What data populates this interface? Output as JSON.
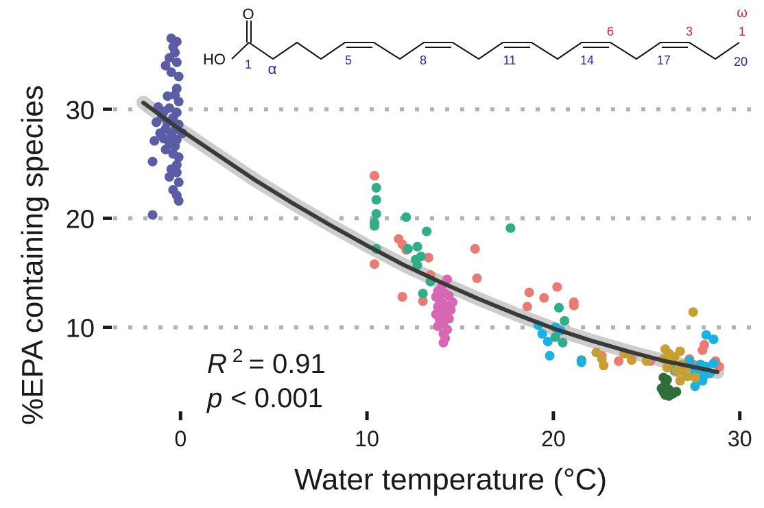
{
  "chart_data": {
    "type": "scatter",
    "title": "",
    "xlabel": "Water temperature (°C)",
    "ylabel": "%EPA containing species",
    "xlim": [
      -3.8,
      30.6
    ],
    "ylim": [
      2.3,
      37.5
    ],
    "xticks": [
      "0",
      "10",
      "20",
      "30"
    ],
    "xtick_values": [
      0,
      10,
      20,
      30
    ],
    "yticks": [
      "10",
      "20",
      "30"
    ],
    "ytick_values": [
      10,
      20,
      30
    ],
    "grid": "dotted horizontal lines at y ticks",
    "stats": {
      "r2_label": "R",
      "r2_exp": "2",
      "r2_value": "= 0.91",
      "p_label": "p",
      "p_value": "< 0.001"
    },
    "fit": {
      "color": "#3a3a3a",
      "band_color": "#c8c8c8",
      "points": [
        [
          -2.0,
          30.6
        ],
        [
          0,
          28.1
        ],
        [
          2,
          25.8
        ],
        [
          4,
          23.5
        ],
        [
          6,
          21.4
        ],
        [
          8,
          19.4
        ],
        [
          10,
          17.5
        ],
        [
          12,
          15.7
        ],
        [
          14,
          14.1
        ],
        [
          16,
          12.6
        ],
        [
          18,
          11.2
        ],
        [
          20,
          9.9
        ],
        [
          22,
          8.8
        ],
        [
          24,
          7.8
        ],
        [
          26,
          6.9
        ],
        [
          28,
          6.2
        ],
        [
          28.8,
          5.9
        ]
      ]
    },
    "series": [
      {
        "color": "#5b5ba6",
        "points": [
          [
            -0.5,
            36.5
          ],
          [
            -0.2,
            36.2
          ],
          [
            -0.4,
            35.7
          ],
          [
            -0.3,
            35.2
          ],
          [
            -0.6,
            34.7
          ],
          [
            -0.2,
            34.3
          ],
          [
            -0.8,
            34.0
          ],
          [
            -0.5,
            33.4
          ],
          [
            -0.1,
            33.0
          ],
          [
            -0.2,
            31.9
          ],
          [
            -0.7,
            31.2
          ],
          [
            -0.3,
            31.3
          ],
          [
            -0.1,
            30.7
          ],
          [
            -1.2,
            30.2
          ],
          [
            -0.9,
            29.8
          ],
          [
            -0.6,
            30.1
          ],
          [
            -0.2,
            29.7
          ],
          [
            -1.0,
            29.3
          ],
          [
            -0.4,
            29.2
          ],
          [
            -1.3,
            28.8
          ],
          [
            -0.7,
            28.8
          ],
          [
            -0.1,
            28.6
          ],
          [
            -0.8,
            28.2
          ],
          [
            -0.3,
            28.1
          ],
          [
            -1.1,
            27.8
          ],
          [
            -0.5,
            27.6
          ],
          [
            0.1,
            27.8
          ],
          [
            -0.9,
            27.3
          ],
          [
            -0.2,
            27.2
          ],
          [
            -1.4,
            27.1
          ],
          [
            -0.6,
            26.8
          ],
          [
            -0.3,
            26.6
          ],
          [
            -0.8,
            26.3
          ],
          [
            -0.4,
            25.9
          ],
          [
            -0.1,
            25.6
          ],
          [
            -1.5,
            25.2
          ],
          [
            -0.2,
            24.9
          ],
          [
            -0.5,
            24.5
          ],
          [
            -0.2,
            24.2
          ],
          [
            -0.6,
            23.8
          ],
          [
            -0.1,
            23.3
          ],
          [
            -0.4,
            22.6
          ],
          [
            -0.2,
            22.1
          ],
          [
            -0.1,
            21.6
          ],
          [
            -1.5,
            20.3
          ]
        ]
      },
      {
        "color": "#ea7b72",
        "points": [
          [
            10.4,
            23.9
          ],
          [
            10.4,
            15.8
          ],
          [
            11.7,
            18.1
          ],
          [
            11.9,
            17.6
          ],
          [
            12.1,
            17.1
          ],
          [
            13.3,
            16.4
          ],
          [
            15.8,
            17.2
          ],
          [
            15.9,
            14.5
          ],
          [
            13.4,
            14.8
          ],
          [
            11.9,
            12.8
          ],
          [
            13.0,
            12.4
          ],
          [
            18.7,
            13.2
          ],
          [
            19.5,
            12.7
          ],
          [
            20.2,
            13.7
          ],
          [
            21.1,
            12.3
          ],
          [
            21.1,
            12.0
          ],
          [
            18.6,
            11.9
          ],
          [
            20.2,
            9.9
          ],
          [
            22.6,
            7.4
          ],
          [
            24.2,
            7.1
          ],
          [
            23.5,
            6.9
          ],
          [
            25.2,
            6.9
          ],
          [
            26.3,
            6.5
          ],
          [
            27.3,
            7.1
          ],
          [
            27.5,
            6.6
          ],
          [
            28.0,
            7.9
          ],
          [
            28.1,
            8.4
          ],
          [
            28.7,
            6.9
          ],
          [
            28.9,
            6.4
          ],
          [
            26.6,
            5.9
          ],
          [
            27.9,
            6.3
          ]
        ]
      },
      {
        "color": "#2fae87",
        "points": [
          [
            10.5,
            22.8
          ],
          [
            10.5,
            21.7
          ],
          [
            10.5,
            20.4
          ],
          [
            10.4,
            19.6
          ],
          [
            10.4,
            19.3
          ],
          [
            10.5,
            17.2
          ],
          [
            12.1,
            20.1
          ],
          [
            12.2,
            17.2
          ],
          [
            12.7,
            17.4
          ],
          [
            12.6,
            16.2
          ],
          [
            12.9,
            16.5
          ],
          [
            12.7,
            15.7
          ],
          [
            13.2,
            18.8
          ],
          [
            13.4,
            14.2
          ],
          [
            13.0,
            13.1
          ],
          [
            17.7,
            19.1
          ],
          [
            20.3,
            11.8
          ],
          [
            20.6,
            10.6
          ],
          [
            20.1,
            9.1
          ],
          [
            20.5,
            8.6
          ],
          [
            21.5,
            7.0
          ]
        ]
      },
      {
        "color": "#d867b3",
        "points": [
          [
            14.3,
            14.4
          ],
          [
            14.0,
            13.7
          ],
          [
            13.8,
            13.3
          ],
          [
            14.2,
            13.1
          ],
          [
            13.7,
            12.8
          ],
          [
            14.4,
            12.9
          ],
          [
            13.9,
            12.5
          ],
          [
            14.1,
            12.2
          ],
          [
            14.6,
            12.3
          ],
          [
            13.8,
            11.9
          ],
          [
            14.3,
            11.8
          ],
          [
            14.0,
            11.5
          ],
          [
            14.5,
            11.6
          ],
          [
            13.7,
            11.2
          ],
          [
            14.2,
            11.1
          ],
          [
            14.4,
            10.8
          ],
          [
            13.9,
            10.7
          ],
          [
            14.1,
            10.4
          ],
          [
            13.8,
            10.1
          ],
          [
            14.3,
            9.8
          ],
          [
            14.1,
            9.4
          ],
          [
            14.2,
            9.0
          ],
          [
            14.1,
            8.6
          ]
        ]
      },
      {
        "color": "#1cb0e3",
        "points": [
          [
            19.2,
            10.2
          ],
          [
            19.4,
            9.4
          ],
          [
            20.1,
            10.0
          ],
          [
            20.4,
            9.7
          ],
          [
            19.7,
            8.7
          ],
          [
            19.8,
            7.4
          ],
          [
            21.5,
            6.8
          ],
          [
            26.5,
            6.0
          ],
          [
            27.2,
            6.7
          ],
          [
            27.4,
            6.4
          ],
          [
            27.6,
            6.0
          ],
          [
            27.9,
            6.6
          ],
          [
            28.2,
            6.4
          ],
          [
            28.4,
            5.8
          ],
          [
            28.6,
            6.7
          ],
          [
            28.2,
            9.3
          ],
          [
            28.6,
            8.9
          ],
          [
            28.0,
            5.1
          ],
          [
            27.6,
            4.6
          ],
          [
            27.8,
            6.2
          ],
          [
            28.1,
            5.6
          ],
          [
            27.3,
            6.9
          ]
        ]
      },
      {
        "color": "#c7a033",
        "points": [
          [
            22.3,
            7.7
          ],
          [
            22.6,
            7.1
          ],
          [
            22.7,
            6.5
          ],
          [
            23.8,
            7.6
          ],
          [
            24.2,
            7.0
          ],
          [
            25.0,
            6.9
          ],
          [
            26.0,
            8.0
          ],
          [
            26.2,
            7.6
          ],
          [
            26.5,
            7.3
          ],
          [
            26.8,
            7.8
          ],
          [
            26.3,
            6.8
          ],
          [
            26.1,
            6.3
          ],
          [
            26.6,
            6.0
          ],
          [
            26.9,
            6.6
          ],
          [
            27.0,
            5.9
          ],
          [
            27.2,
            5.5
          ],
          [
            26.8,
            5.1
          ],
          [
            27.6,
            5.4
          ],
          [
            27.5,
            11.4
          ],
          [
            25.9,
            7.1
          ],
          [
            27.1,
            6.3
          ]
        ]
      },
      {
        "color": "#2e6e3b",
        "points": [
          [
            25.8,
            4.4
          ],
          [
            25.9,
            4.1
          ],
          [
            26.0,
            4.8
          ],
          [
            26.1,
            5.2
          ],
          [
            26.2,
            4.3
          ],
          [
            26.4,
            3.9
          ],
          [
            26.2,
            3.7
          ],
          [
            26.6,
            4.1
          ],
          [
            25.9,
            5.4
          ],
          [
            26.0,
            3.8
          ]
        ]
      }
    ],
    "molecule": {
      "carbonyl_o": "O",
      "hydroxyl": "HO",
      "alpha": "α",
      "omega": "ω",
      "c_numbers": [
        "1",
        "5",
        "8",
        "11",
        "14",
        "17",
        "20"
      ],
      "omega_numbers": [
        "6",
        "3",
        "1"
      ],
      "blue": "#2929a8",
      "red": "#d12b2b"
    }
  }
}
